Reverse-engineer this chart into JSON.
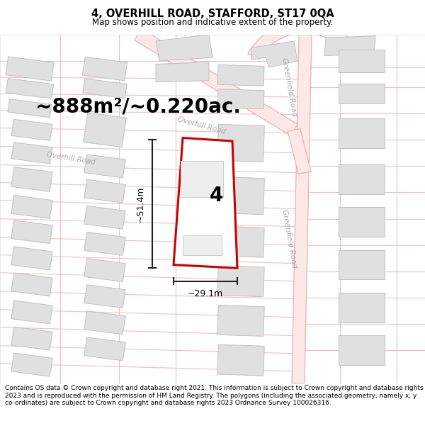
{
  "title": "4, OVERHILL ROAD, STAFFORD, ST17 0QA",
  "subtitle": "Map shows position and indicative extent of the property.",
  "area_text": "~888m²/~0.220ac.",
  "label_number": "4",
  "dim_height": "~51.4m",
  "dim_width": "~29.1m",
  "footer": "Contains OS data © Crown copyright and database right 2021. This information is subject to Crown copyright and database rights 2023 and is reproduced with the permission of HM Land Registry. The polygons (including the associated geometry, namely x, y co-ordinates) are subject to Crown copyright and database rights 2023 Ordnance Survey 100026316.",
  "road_fill": "#fce8e8",
  "road_edge": "#e8aaaa",
  "road_center_line": "#e8aaaa",
  "building_fill": "#e0e0e0",
  "building_edge": "#c0c0c0",
  "plot_color": "#cc0000",
  "dim_color": "#222222",
  "road_label_color": "#aaaaaa",
  "title_fontsize": 10.5,
  "subtitle_fontsize": 8.5,
  "area_fontsize": 20,
  "number_fontsize": 20,
  "dim_fontsize": 9,
  "road_label_fontsize": 7.5,
  "footer_fontsize": 6.5
}
